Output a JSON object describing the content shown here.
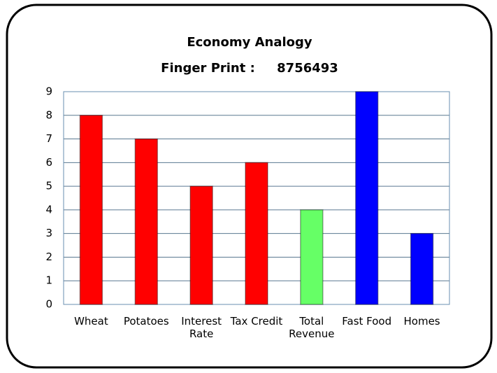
{
  "chart_data": {
    "type": "bar",
    "title": "Economy Analogy",
    "subtitle": "Finger Print :     8756493",
    "categories": [
      "Wheat",
      "Potatoes",
      "Interest Rate",
      "Tax Credit",
      "Total Revenue",
      "Fast Food",
      "Homes"
    ],
    "values": [
      8,
      7,
      5,
      6,
      4,
      9,
      3
    ],
    "colors": [
      "#ff0000",
      "#ff0000",
      "#ff0000",
      "#ff0000",
      "#66ff66",
      "#0000ff",
      "#0000ff"
    ],
    "ylim": [
      0,
      9
    ],
    "yticks": [
      0,
      1,
      2,
      3,
      4,
      5,
      6,
      7,
      8,
      9
    ],
    "grid": true
  }
}
